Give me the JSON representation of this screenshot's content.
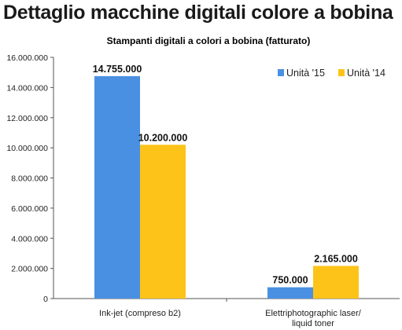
{
  "page": {
    "title": "Dettaglio macchine digitali colore a bobina"
  },
  "chart_data": {
    "type": "bar",
    "title": "Stampanti digitali a colori a bobina (fatturato)",
    "categories": [
      [
        "Ink-jet (compreso b2)"
      ],
      [
        "Elettriphotographic laser/",
        "liquid toner"
      ]
    ],
    "series": [
      {
        "name": "Unità '15",
        "color": "#4a90e2",
        "values": [
          14755000,
          750000
        ],
        "labels": [
          "14.755.000",
          "750.000"
        ]
      },
      {
        "name": "Unità '14",
        "color": "#fdc319",
        "values": [
          10200000,
          2165000
        ],
        "labels": [
          "10.200.000",
          "2.165.000"
        ]
      }
    ],
    "ylim": [
      0,
      16000000
    ],
    "yticks": [
      {
        "value": 0,
        "label": "0"
      },
      {
        "value": 2000000,
        "label": "2.000.000"
      },
      {
        "value": 4000000,
        "label": "4.000.000"
      },
      {
        "value": 6000000,
        "label": "6.000.000"
      },
      {
        "value": 8000000,
        "label": "8.000.000"
      },
      {
        "value": 10000000,
        "label": "10.000.000"
      },
      {
        "value": 12000000,
        "label": "12.000.000"
      },
      {
        "value": 14000000,
        "label": "14.000.000"
      },
      {
        "value": 16000000,
        "label": "16.000.000"
      }
    ],
    "legend_position": "top-right",
    "grid": false
  }
}
